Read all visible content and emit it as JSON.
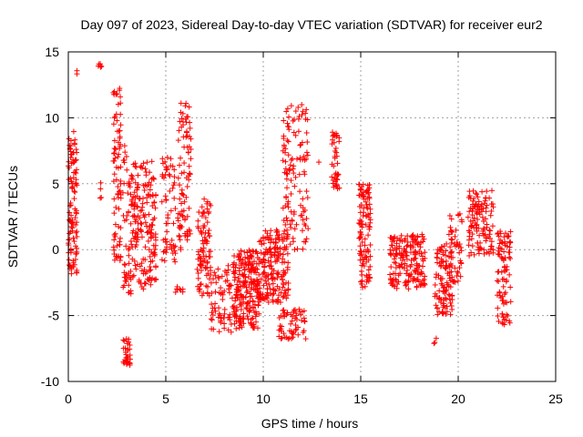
{
  "chart_data": {
    "type": "scatter",
    "title": "Day 097 of 2023, Sidereal Day-to-day VTEC variation (SDTVAR) for receiver eur2",
    "xlabel": "GPS time / hours",
    "ylabel": "SDTVAR / TECUs",
    "xlim": [
      0,
      25
    ],
    "ylim": [
      -10,
      15
    ],
    "xticks": [
      0,
      5,
      10,
      15,
      20,
      25
    ],
    "yticks": [
      -10,
      -5,
      0,
      5,
      10,
      15
    ],
    "grid": true,
    "marker": "+",
    "colors": {
      "series": "#ff0000",
      "grid": "#a0a0a0",
      "axis": "#000000"
    },
    "clusters": [
      {
        "x0": 0.0,
        "x1": 0.45,
        "ymin": -2.0,
        "ymax": 9.0,
        "n": 110
      },
      {
        "x0": 0.3,
        "x1": 0.45,
        "ymin": 13.2,
        "ymax": 13.6,
        "n": 2
      },
      {
        "x0": 1.5,
        "x1": 1.7,
        "ymin": 13.8,
        "ymax": 14.1,
        "n": 6
      },
      {
        "x0": 1.6,
        "x1": 1.7,
        "ymin": 3.5,
        "ymax": 5.2,
        "n": 4
      },
      {
        "x0": 2.3,
        "x1": 2.7,
        "ymin": -1.0,
        "ymax": 13.0,
        "n": 80
      },
      {
        "x0": 2.8,
        "x1": 3.2,
        "ymin": -8.8,
        "ymax": -6.5,
        "n": 30
      },
      {
        "x0": 2.8,
        "x1": 3.3,
        "ymin": -3.5,
        "ymax": 8.0,
        "n": 60
      },
      {
        "x0": 3.3,
        "x1": 4.5,
        "ymin": -3.0,
        "ymax": 7.0,
        "n": 170
      },
      {
        "x0": 4.8,
        "x1": 5.5,
        "ymin": -1.0,
        "ymax": 7.0,
        "n": 60
      },
      {
        "x0": 5.6,
        "x1": 6.3,
        "ymin": 0.0,
        "ymax": 11.2,
        "n": 90
      },
      {
        "x0": 5.5,
        "x1": 6.0,
        "ymin": -3.3,
        "ymax": -2.7,
        "n": 8
      },
      {
        "x0": 6.6,
        "x1": 7.3,
        "ymin": -3.5,
        "ymax": 4.0,
        "n": 90
      },
      {
        "x0": 7.3,
        "x1": 8.5,
        "ymin": -6.5,
        "ymax": -1.0,
        "n": 70
      },
      {
        "x0": 8.5,
        "x1": 9.8,
        "ymin": -6.0,
        "ymax": 0.0,
        "n": 220
      },
      {
        "x0": 9.8,
        "x1": 11.3,
        "ymin": -4.0,
        "ymax": 1.5,
        "n": 180
      },
      {
        "x0": 10.8,
        "x1": 12.2,
        "ymin": -6.8,
        "ymax": -4.5,
        "n": 60
      },
      {
        "x0": 11.0,
        "x1": 12.3,
        "ymin": 0.0,
        "ymax": 11.0,
        "n": 120
      },
      {
        "x0": 12.8,
        "x1": 12.9,
        "ymin": 6.5,
        "ymax": 6.9,
        "n": 1
      },
      {
        "x0": 13.5,
        "x1": 13.9,
        "ymin": 4.5,
        "ymax": 9.5,
        "n": 40
      },
      {
        "x0": 14.9,
        "x1": 15.5,
        "ymin": -3.0,
        "ymax": 5.0,
        "n": 110
      },
      {
        "x0": 16.5,
        "x1": 18.3,
        "ymin": -3.0,
        "ymax": 1.2,
        "n": 180
      },
      {
        "x0": 18.7,
        "x1": 18.9,
        "ymin": -7.2,
        "ymax": -6.6,
        "n": 3
      },
      {
        "x0": 18.8,
        "x1": 19.7,
        "ymin": -5.0,
        "ymax": 0.5,
        "n": 100
      },
      {
        "x0": 19.5,
        "x1": 20.2,
        "ymin": -2.5,
        "ymax": 2.8,
        "n": 50
      },
      {
        "x0": 20.5,
        "x1": 21.8,
        "ymin": -0.5,
        "ymax": 4.5,
        "n": 120
      },
      {
        "x0": 22.0,
        "x1": 22.7,
        "ymin": -5.8,
        "ymax": 1.5,
        "n": 90
      }
    ]
  }
}
